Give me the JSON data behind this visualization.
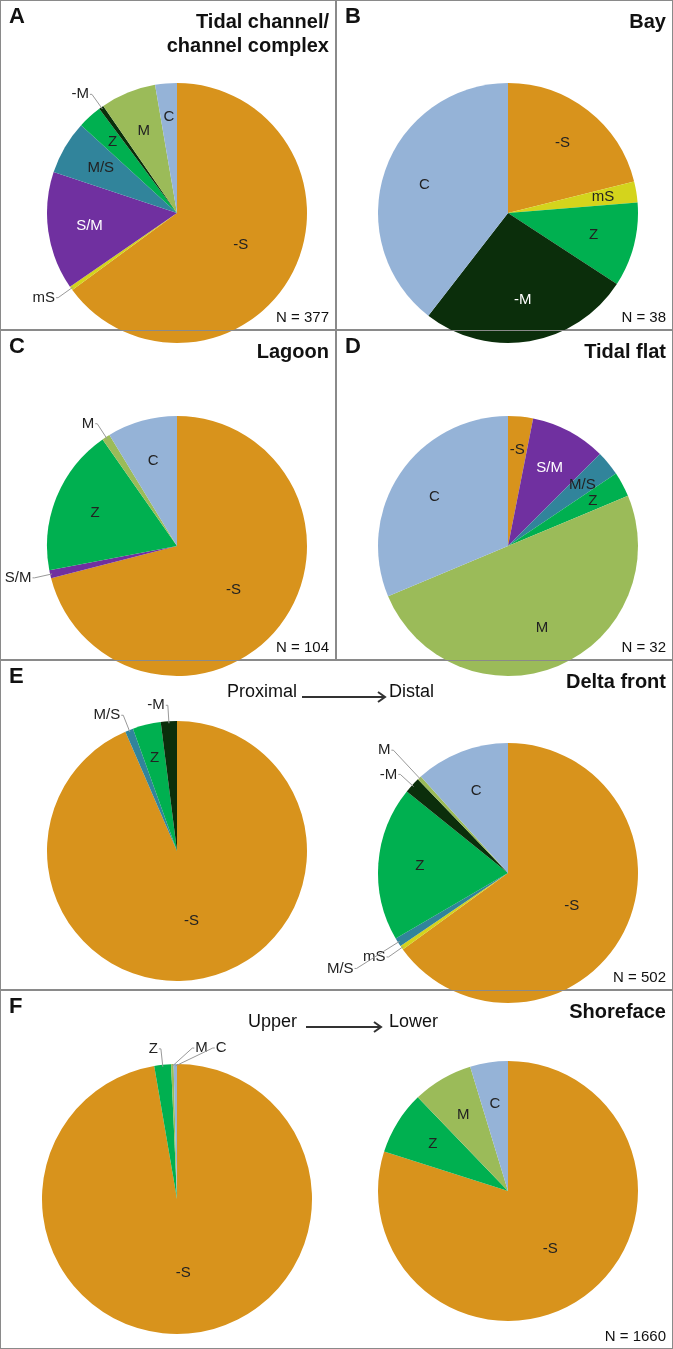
{
  "chart_data": [
    {
      "type": "pie",
      "title": "Tidal channel/ channel complex",
      "annotations": [
        "A",
        "N = 377"
      ],
      "categories": [
        "-S",
        "mS",
        "S/M",
        "M/S",
        "Z",
        "-M",
        "M",
        "C"
      ],
      "values": [
        64.9,
        0.5,
        14.7,
        6.7,
        3.0,
        0.6,
        6.9,
        2.7
      ],
      "colors": [
        "#d8931c",
        "#d4d41c",
        "#7030a0",
        "#31849b",
        "#00b050",
        "#0b2e0b",
        "#9bbb59",
        "#95b3d7"
      ]
    },
    {
      "type": "pie",
      "title": "Bay",
      "annotations": [
        "B",
        "N = 38"
      ],
      "categories": [
        "-S",
        "mS",
        "Z",
        "-M",
        "C"
      ],
      "values": [
        21.1,
        2.6,
        10.5,
        26.3,
        39.5
      ],
      "colors": [
        "#d8931c",
        "#d4d41c",
        "#00b050",
        "#0b2e0b",
        "#95b3d7"
      ]
    },
    {
      "type": "pie",
      "title": "Lagoon",
      "annotations": [
        "C",
        "N = 104"
      ],
      "categories": [
        "-S",
        "S/M",
        "Z",
        "M",
        "C"
      ],
      "values": [
        71.0,
        1.0,
        18.3,
        1.0,
        8.7
      ],
      "colors": [
        "#d8931c",
        "#7030a0",
        "#00b050",
        "#9bbb59",
        "#95b3d7"
      ]
    },
    {
      "type": "pie",
      "title": "Tidal flat",
      "annotations": [
        "D",
        "N = 32"
      ],
      "categories": [
        "-S",
        "S/M",
        "M/S",
        "Z",
        "M",
        "C"
      ],
      "values": [
        3.1,
        9.4,
        3.1,
        3.1,
        50.0,
        31.3
      ],
      "colors": [
        "#d8931c",
        "#7030a0",
        "#31849b",
        "#00b050",
        "#9bbb59",
        "#95b3d7"
      ]
    },
    {
      "type": "pie",
      "annotations": [
        "E",
        "Proximal"
      ],
      "categories": [
        "-S",
        "M/S",
        "Z",
        "-M"
      ],
      "values": [
        93.5,
        1.0,
        3.5,
        2.0
      ],
      "colors": [
        "#d8931c",
        "#31849b",
        "#00b050",
        "#0b2e0b"
      ]
    },
    {
      "type": "pie",
      "title": "Delta front",
      "annotations": [
        "Distal",
        "N = 502"
      ],
      "categories": [
        "-S",
        "mS",
        "M/S",
        "Z",
        "-M",
        "M",
        "C"
      ],
      "values": [
        65.0,
        0.5,
        1.1,
        19.2,
        2.0,
        0.5,
        11.7
      ],
      "colors": [
        "#d8931c",
        "#d4d41c",
        "#31849b",
        "#00b050",
        "#0b2e0b",
        "#9bbb59",
        "#95b3d7"
      ]
    },
    {
      "type": "pie",
      "annotations": [
        "F",
        "Upper"
      ],
      "categories": [
        "-S",
        "Z",
        "M",
        "C"
      ],
      "values": [
        97.3,
        2.0,
        0.3,
        0.4
      ],
      "colors": [
        "#d8931c",
        "#00b050",
        "#9bbb59",
        "#95b3d7"
      ]
    },
    {
      "type": "pie",
      "title": "Shoreface",
      "annotations": [
        "Lower",
        "N = 1660"
      ],
      "categories": [
        "-S",
        "Z",
        "M",
        "C"
      ],
      "values": [
        79.9,
        7.9,
        7.5,
        4.7
      ],
      "colors": [
        "#d8931c",
        "#00b050",
        "#9bbb59",
        "#95b3d7"
      ]
    }
  ]
}
